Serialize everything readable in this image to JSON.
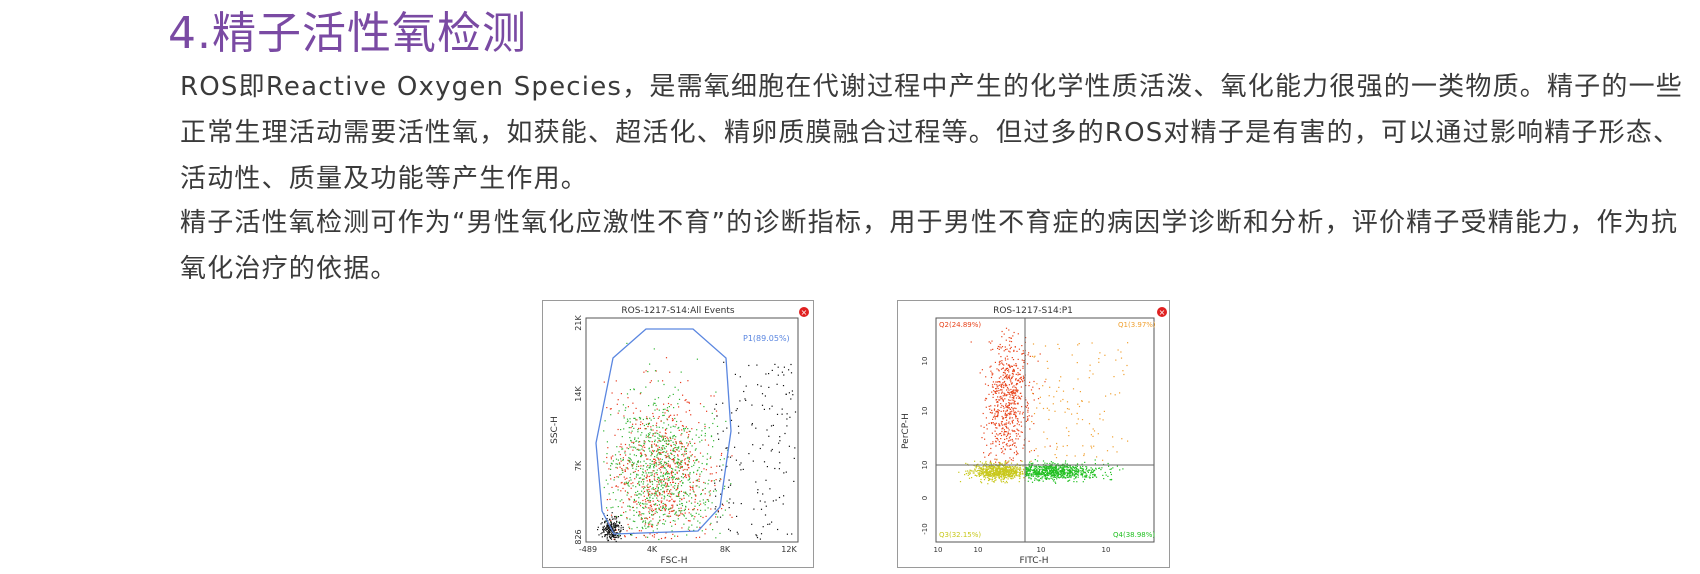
{
  "heading": "4.精子活性氧检测",
  "paragraphs": [
    "ROS即Reactive Oxygen Species，是需氧细胞在代谢过程中产生的化学性质活泼、氧化能力很强的一类物质。精子的一些正常生理活动需要活性氧，如获能、超活化、精卵质膜融合过程等。但过多的ROS对精子是有害的，可以通过影响精子形态、活动性、质量及功能等产生作用。",
    "精子活性氧检测可作为“男性氧化应激性不育”的诊断指标，用于男性不育症的病因学诊断和分析，评价精子受精能力，作为抗氧化治疗的依据。"
  ],
  "chart_data": [
    {
      "type": "scatter",
      "title": "ROS-1217-S14:All Events",
      "xlabel": "FSC-H",
      "ylabel": "SSC-H",
      "x_ticks": [
        "-489",
        "4K",
        "8K",
        "12K"
      ],
      "y_ticks": [
        "826",
        "7K",
        "14K",
        "21K"
      ],
      "gate_label": "P1(89.05%)",
      "colors": {
        "red": "#e8381c",
        "green": "#33b533",
        "black": "#111111",
        "gate": "#5a86e0"
      }
    },
    {
      "type": "scatter",
      "title": "ROS-1217-S14:P1",
      "xlabel": "FITC-H",
      "ylabel": "PerCP-H",
      "x_ticks": [
        "10",
        "10",
        "10",
        "10"
      ],
      "y_ticks": [
        "-10",
        "0",
        "10",
        "10",
        "10"
      ],
      "quadrants": {
        "q1": "Q1(3.97%)",
        "q2": "Q2(24.89%)",
        "q3": "Q3(32.15%)",
        "q4": "Q4(38.98%)"
      },
      "colors": {
        "q1": "#f0a030",
        "q2": "#e8441c",
        "q3": "#c8c81c",
        "q4": "#22c022"
      }
    }
  ]
}
